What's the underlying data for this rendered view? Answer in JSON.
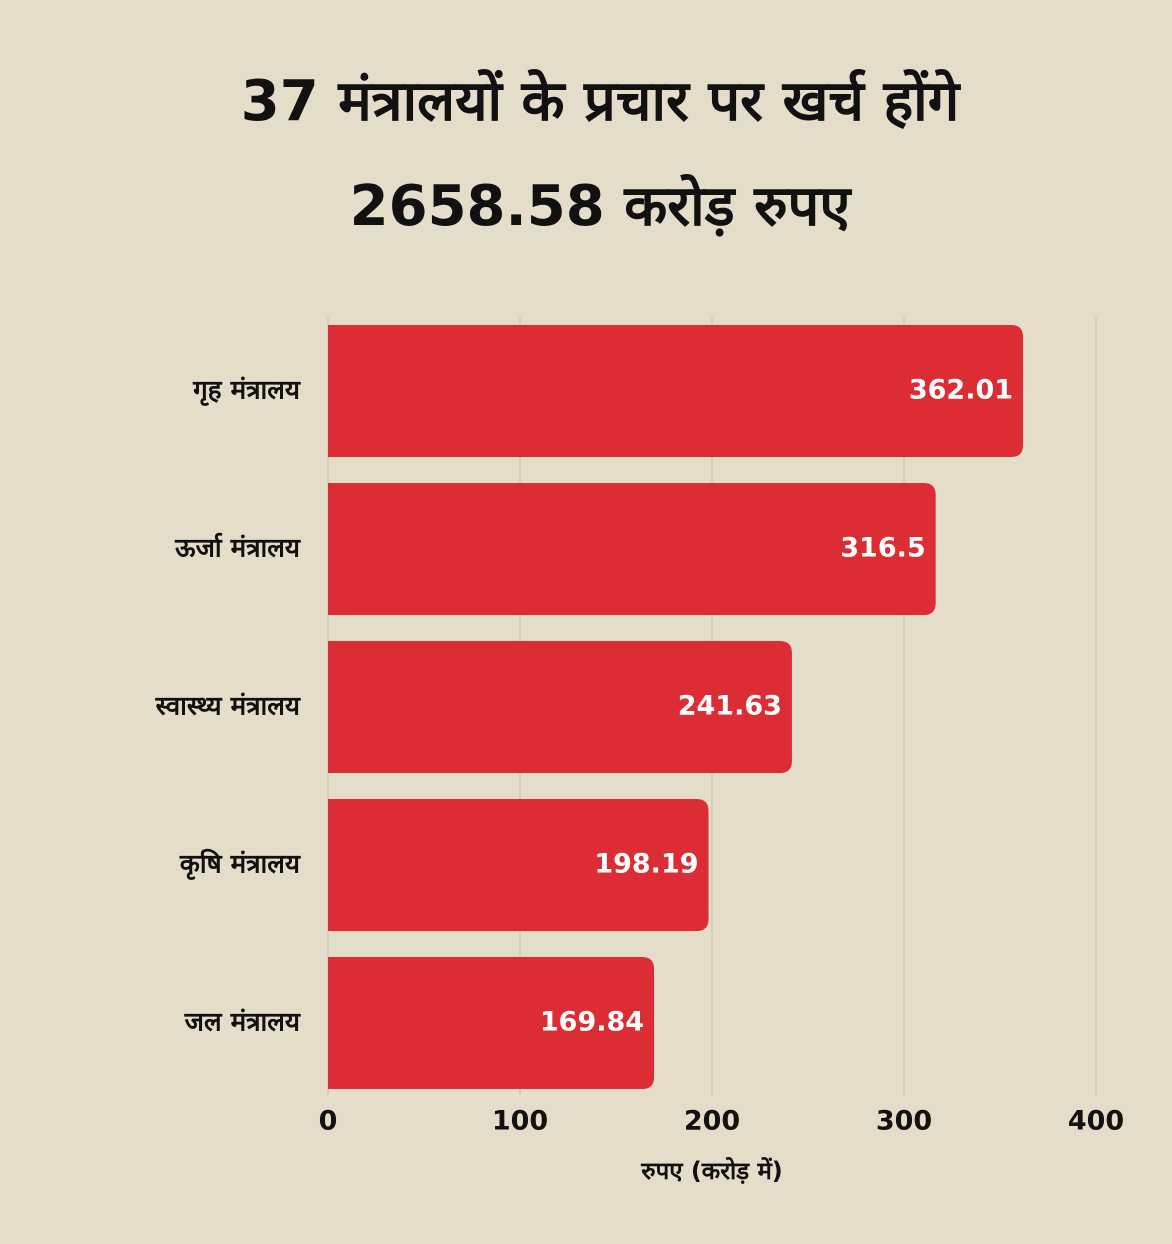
{
  "chart_data": {
    "type": "barh",
    "title": [
      "37 मंत्रालयों के प्रचार पर खर्च होंगे",
      "2658.58 करोड़ रुपए"
    ],
    "categories": [
      "गृह मंत्रालय",
      "ऊर्जा मंत्रालय",
      "स्वास्थ्य मंत्रालय",
      "कृषि मंत्रालय",
      "जल मंत्रालय"
    ],
    "values": [
      362.01,
      316.5,
      241.63,
      198.19,
      169.84
    ],
    "color": "#dc2c34",
    "xlabel": "रुपए (करोड़ में)",
    "xlim": [
      0,
      400
    ],
    "xticks": [
      0,
      100,
      200,
      300,
      400
    ],
    "grid": true
  }
}
